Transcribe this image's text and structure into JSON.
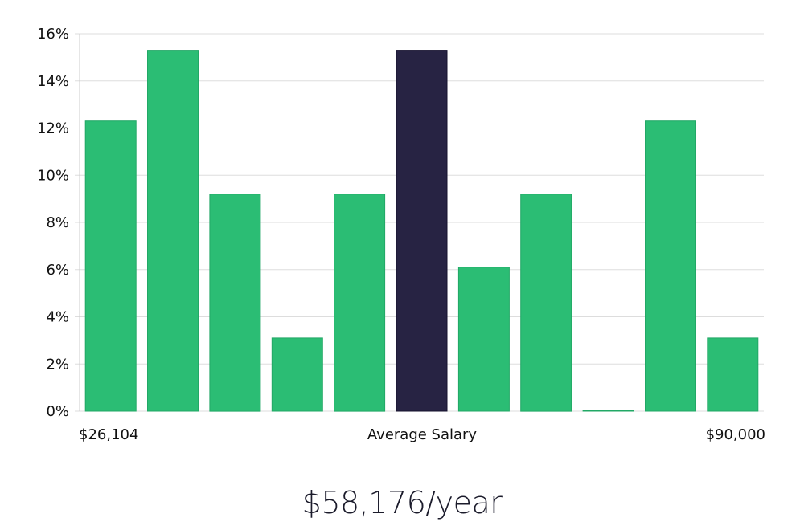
{
  "chart_data": {
    "type": "bar",
    "title": "",
    "xlabel": "",
    "ylabel": "",
    "values": [
      12.3,
      15.3,
      9.2,
      3.1,
      9.2,
      15.3,
      6.1,
      9.2,
      0.0,
      12.3,
      3.1
    ],
    "highlight_index": 5,
    "ylim": [
      0,
      16
    ],
    "y_ticks": [
      "0%",
      "2%",
      "4%",
      "6%",
      "8%",
      "10%",
      "12%",
      "14%",
      "16%"
    ],
    "x_labels": {
      "min": "$26,104",
      "center": "Average Salary",
      "max": "$90,000"
    },
    "grid": true,
    "legend": "none",
    "colors": {
      "bar": "#2bbd74",
      "highlight": "#272343",
      "grid": "#dddddd"
    }
  },
  "summary": {
    "salary_label": "$58,176/year"
  }
}
